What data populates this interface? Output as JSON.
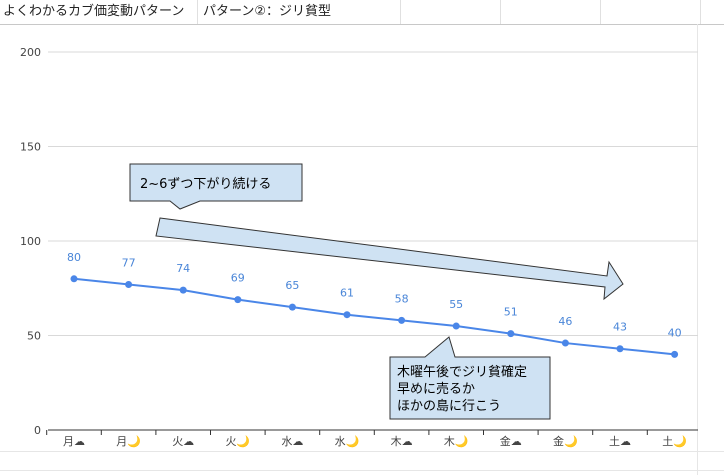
{
  "sheet": {
    "title_cell": "よくわかるカブ価変動パターン",
    "subtitle_cell": "パターン②：ジリ貧型"
  },
  "chart_data": {
    "type": "line",
    "title": "",
    "xlabel": "",
    "ylabel": "",
    "categories": [
      "月☁",
      "月🌙",
      "火☁",
      "火🌙",
      "水☁",
      "水🌙",
      "木☁",
      "木🌙",
      "金☁",
      "金🌙",
      "土☁",
      "土🌙"
    ],
    "series": [
      {
        "values": [
          80,
          77,
          74,
          69,
          65,
          61,
          58,
          55,
          51,
          46,
          43,
          40
        ],
        "color": "#4a86e8"
      }
    ],
    "ylim": [
      0,
      200
    ],
    "yticks": [
      0,
      50,
      100,
      150,
      200
    ],
    "grid": true,
    "data_labels": true,
    "annotations": [
      {
        "lines": [
          "2~6ずつ下がり続ける"
        ]
      },
      {
        "lines": [
          "木曜午後でジリ貧確定",
          "早めに売るか",
          "ほかの島に行こう"
        ]
      }
    ],
    "annotation_fill": "#cfe2f3"
  }
}
